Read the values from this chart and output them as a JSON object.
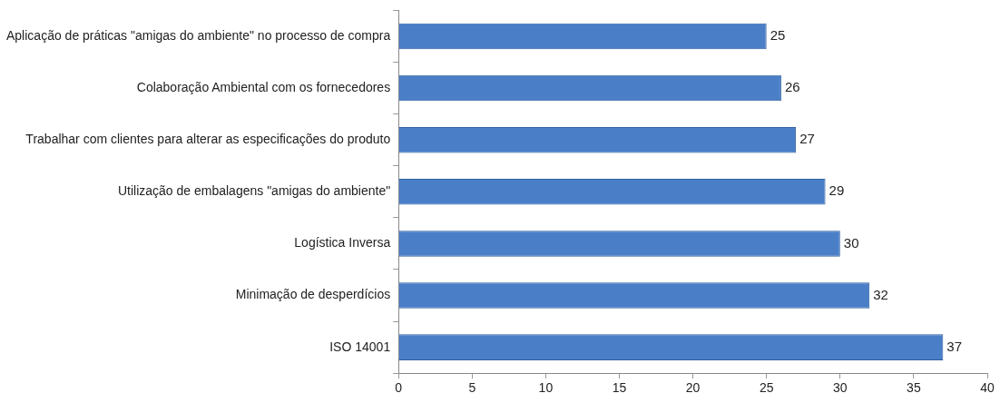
{
  "chart_data": {
    "type": "bar",
    "orientation": "horizontal",
    "categories": [
      "Aplicação de práticas \"amigas do ambiente\" no processo de compra",
      "Colaboração Ambiental com os fornecedores",
      "Trabalhar com clientes para alterar as especificações do produto",
      "Utilização de embalagens \"amigas do ambiente\"",
      "Logística Inversa",
      "Minimação de desperdícios",
      "ISO 14001"
    ],
    "values": [
      25,
      26,
      27,
      29,
      30,
      32,
      37
    ],
    "color": "#4a7fc8",
    "xlim": [
      0,
      40
    ],
    "xticks": [
      0,
      5,
      10,
      15,
      20,
      25,
      30,
      35,
      40
    ],
    "data_labels": true,
    "grid": false,
    "legend": false
  }
}
